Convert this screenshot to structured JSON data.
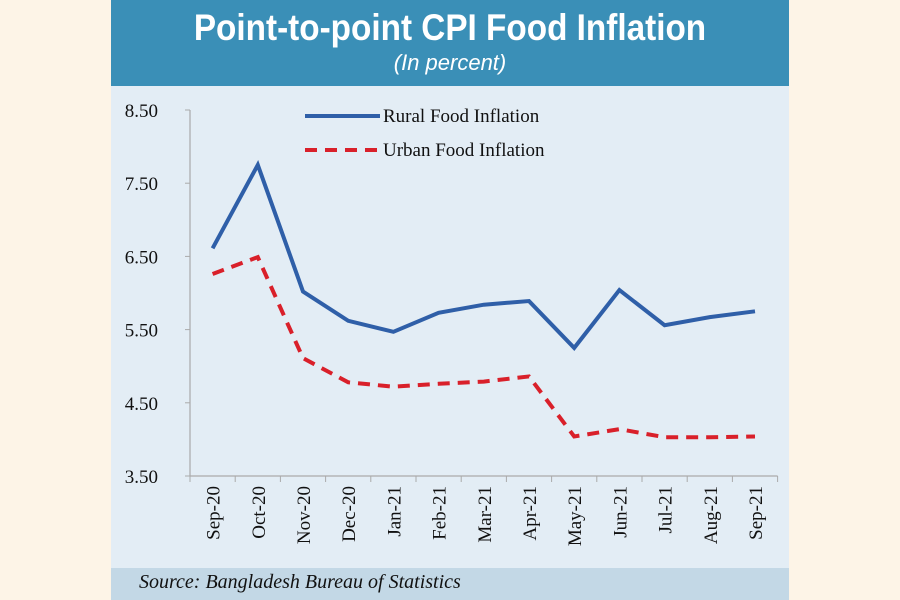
{
  "header": {
    "title": "Point-to-point CPI Food Inflation",
    "subtitle": "(In percent)"
  },
  "source": "Source: Bangladesh Bureau of Statistics",
  "chart_data": {
    "type": "line",
    "title": "Point-to-point CPI Food Inflation",
    "subtitle": "(In percent)",
    "xlabel": "",
    "ylabel": "",
    "ylim": [
      3.5,
      8.5
    ],
    "yticks": [
      "8.50",
      "7.50",
      "6.50",
      "5.50",
      "4.50",
      "3.50"
    ],
    "categories": [
      "Sep-20",
      "Oct-20",
      "Nov-20",
      "Dec-20",
      "Jan-21",
      "Feb-21",
      "Mar-21",
      "Apr-21",
      "May-21",
      "Jun-21",
      "Jul-21",
      "Aug-21",
      "Sep-21"
    ],
    "grid": false,
    "legend": "top-center",
    "series": [
      {
        "name": "Rural Food Inflation",
        "color": "#2f5fa8",
        "style": "solid",
        "values": [
          6.61,
          7.75,
          6.02,
          5.62,
          5.47,
          5.73,
          5.84,
          5.89,
          5.25,
          6.04,
          5.56,
          5.67,
          5.75
        ]
      },
      {
        "name": "Urban Food Inflation",
        "color": "#d9202a",
        "style": "dashed",
        "values": [
          6.26,
          6.49,
          5.11,
          4.78,
          4.72,
          4.76,
          4.79,
          4.86,
          4.04,
          4.14,
          4.03,
          4.03,
          4.04
        ]
      }
    ]
  }
}
